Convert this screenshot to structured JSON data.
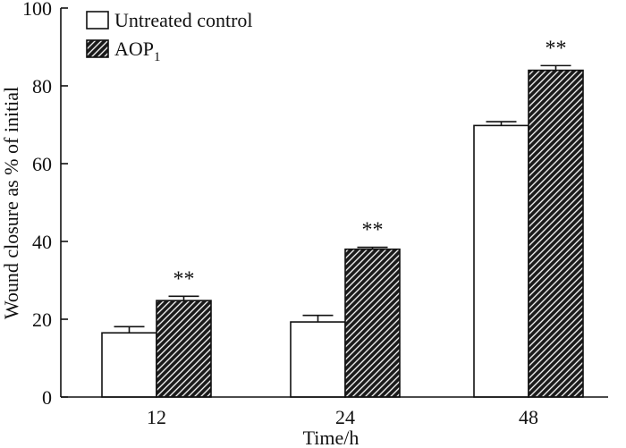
{
  "chart_data": {
    "type": "bar",
    "title": "",
    "xlabel": "Time/h",
    "ylabel": "Wound closure as % of initial",
    "ylim": [
      0,
      100
    ],
    "yticks": [
      0,
      20,
      40,
      60,
      80,
      100
    ],
    "categories": [
      "12",
      "24",
      "48"
    ],
    "series": [
      {
        "name": "Untreated control",
        "pattern": "open",
        "fill": "#ffffff",
        "values": [
          16.5,
          19.3,
          69.8
        ],
        "errors": [
          1.6,
          1.7,
          1.0
        ]
      },
      {
        "name": "AOP",
        "name_subscript": "1",
        "pattern": "hatched",
        "fill": "#1a1a1a",
        "values": [
          24.8,
          38.0,
          84.0
        ],
        "errors": [
          1.1,
          0.5,
          1.2
        ]
      }
    ],
    "significance": [
      "**",
      "**",
      "**"
    ],
    "legend_position": "top-left"
  }
}
